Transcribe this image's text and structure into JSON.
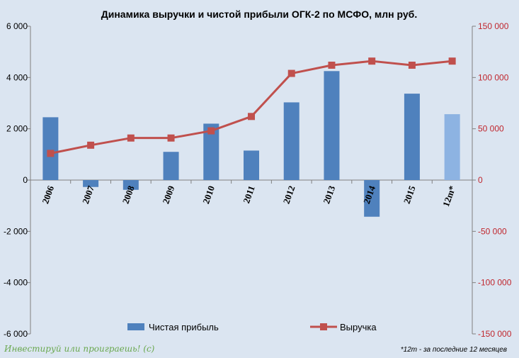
{
  "chart_data": {
    "type": "bar",
    "title": "Динамика выручки и чистой прибыли ОГК-2 по МСФО, млн руб.",
    "categories": [
      "2006",
      "2007",
      "2008",
      "2009",
      "2010",
      "2011",
      "2012",
      "2013",
      "2014",
      "2015",
      "12m*"
    ],
    "series": [
      {
        "name": "Чистая прибыль",
        "type": "bar",
        "axis": "left",
        "color": "#4f81bd",
        "highlight_color": "#8db3e2",
        "highlight_category": "12m*",
        "values": [
          2450,
          -270,
          -380,
          1100,
          2200,
          1150,
          3030,
          4250,
          -1430,
          3370,
          2570
        ]
      },
      {
        "name": "Выручка",
        "type": "line",
        "axis": "right",
        "color": "#c0504d",
        "values": [
          26000,
          34000,
          41000,
          41000,
          48000,
          62000,
          104000,
          112000,
          116000,
          112000,
          116000
        ]
      }
    ],
    "y_left": {
      "ylim": [
        -6000,
        6000
      ],
      "ticks": [
        6000,
        4000,
        2000,
        0,
        -2000,
        -4000,
        -6000
      ],
      "tick_labels": [
        "6 000",
        "4 000",
        "2 000",
        "0",
        "-2 000",
        "-4 000",
        "-6 000"
      ]
    },
    "y_right": {
      "ylim": [
        -150000,
        150000
      ],
      "ticks": [
        150000,
        100000,
        50000,
        0,
        -50000,
        -100000,
        -150000
      ],
      "tick_labels": [
        "150 000",
        "100 000",
        "50 000",
        "0",
        "-50 000",
        "-100 000",
        "-150 000"
      ],
      "color": "#c0262d"
    },
    "grid": false,
    "legend": {
      "position": "bottom",
      "entries": [
        "Чистая прибыль",
        "Выручка"
      ]
    },
    "footnote": "*12m - за последние 12 месяцев",
    "watermark": "Инвестируй или проиграешь! (с)"
  }
}
